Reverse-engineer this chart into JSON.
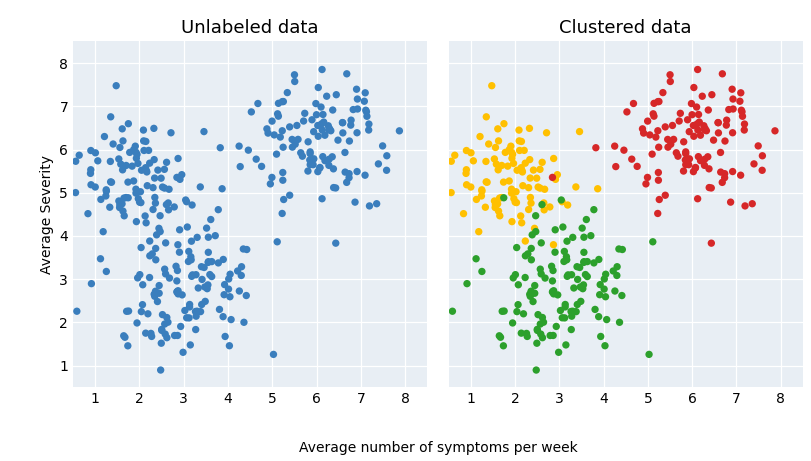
{
  "title_left": "Unlabeled data",
  "title_right": "Clustered data",
  "xlabel": "Average number of symptoms per week",
  "ylabel": "Average Severity",
  "xlim": [
    0.5,
    8.5
  ],
  "ylim": [
    0.5,
    8.5
  ],
  "xticks": [
    1,
    2,
    3,
    4,
    5,
    6,
    7,
    8
  ],
  "yticks": [
    1,
    2,
    3,
    4,
    5,
    6,
    7,
    8
  ],
  "cluster0_color": "#FFC000",
  "cluster1_color": "#2CA02C",
  "cluster2_color": "#D62728",
  "unlabeled_color": "#3A7EBD",
  "background_color": "#E8EEF4",
  "dot_size": 28,
  "seed": 12,
  "cluster0_mean": [
    2.0,
    5.5
  ],
  "cluster0_std": [
    0.65,
    0.65
  ],
  "cluster0_n": 100,
  "cluster1_mean": [
    3.0,
    2.8
  ],
  "cluster1_std": [
    0.8,
    0.95
  ],
  "cluster1_n": 130,
  "cluster2_mean": [
    6.0,
    6.2
  ],
  "cluster2_std": [
    0.85,
    0.75
  ],
  "cluster2_n": 120,
  "title_fontsize": 13,
  "label_fontsize": 10,
  "tick_fontsize": 10
}
